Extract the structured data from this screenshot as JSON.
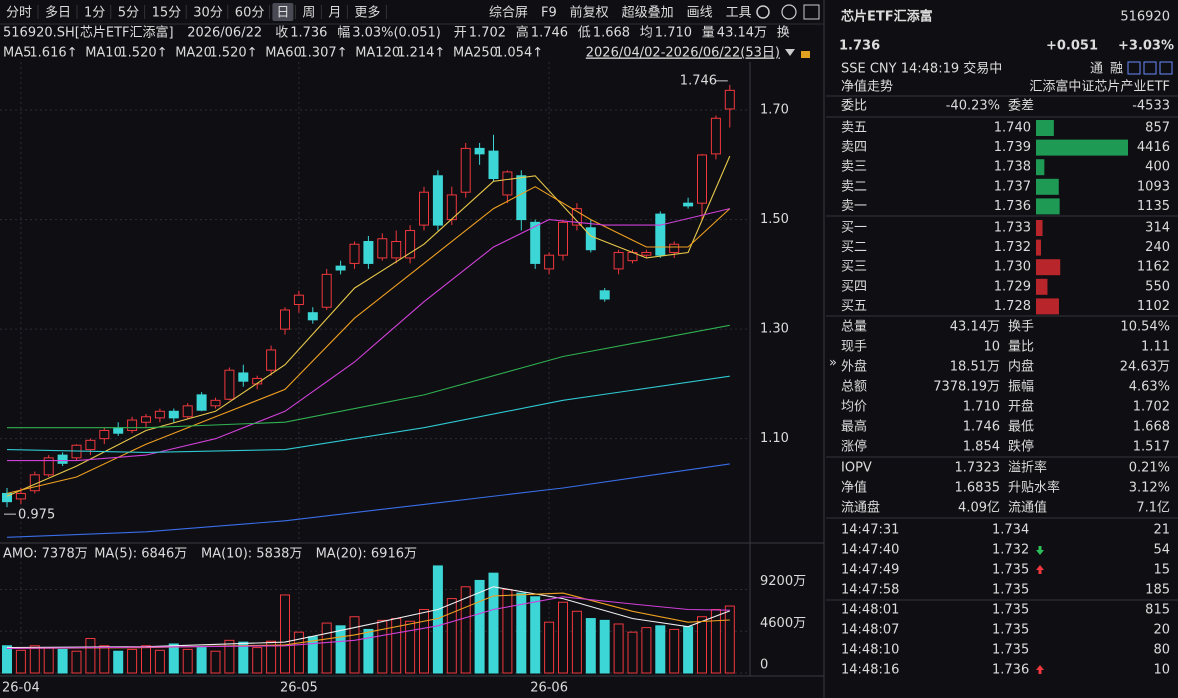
{
  "toolbar": {
    "periods": [
      "分时",
      "多日",
      "1分",
      "5分",
      "15分",
      "30分",
      "60分",
      "日",
      "周",
      "月",
      "更多"
    ],
    "selected": 7,
    "tools": [
      "综合屏",
      "F9",
      "前复权",
      "超级叠加",
      "画线",
      "工具"
    ]
  },
  "quote_bar": {
    "code": "516920.SH[芯片ETF汇添富]",
    "date": "2026/06/22",
    "items": [
      {
        "label": "收",
        "value": "1.736",
        "color": "#f0383e"
      },
      {
        "label": "幅",
        "value": "3.03%(0.051)",
        "color": "#f0383e"
      },
      {
        "label": "开",
        "value": "1.702",
        "color": "#f0383e"
      },
      {
        "label": "高",
        "value": "1.746",
        "color": "#f0383e"
      },
      {
        "label": "低",
        "value": "1.668",
        "color": "#f0383e"
      },
      {
        "label": "均",
        "value": "1.710",
        "color": "#f0383e"
      },
      {
        "label": "量",
        "value": "43.14万",
        "color": "#e0e0e0"
      }
    ],
    "tail": "换"
  },
  "candles": {
    "range": "2026/04/02-2026/06/22(53日)",
    "ylim": [
      0.915,
      1.764
    ],
    "yticks": [
      {
        "value": 1.7,
        "label": "1.70"
      },
      {
        "value": 1.5,
        "label": "1.50"
      },
      {
        "value": 1.3,
        "label": "1.30"
      },
      {
        "value": 1.1,
        "label": "1.10"
      }
    ],
    "up_color": "#f0383e",
    "down_color": "#3dd6d6",
    "max_label": "1.746",
    "min_label": "0.975",
    "open": [
      1.0,
      0.99,
      1.005,
      1.034,
      1.07,
      1.065,
      1.08,
      1.1,
      1.12,
      1.115,
      1.13,
      1.138,
      1.15,
      1.14,
      1.18,
      1.16,
      1.172,
      1.22,
      1.2,
      1.225,
      1.3,
      1.345,
      1.33,
      1.34,
      1.415,
      1.42,
      1.46,
      1.43,
      1.43,
      1.43,
      1.49,
      1.58,
      1.5,
      1.55,
      1.63,
      1.625,
      1.545,
      1.58,
      1.495,
      1.41,
      1.435,
      1.49,
      1.485,
      1.37,
      1.41,
      1.425,
      1.435,
      1.51,
      1.44,
      1.53,
      1.53,
      1.62,
      1.702
    ],
    "high": [
      1.01,
      1.01,
      1.04,
      1.07,
      1.075,
      1.09,
      1.1,
      1.12,
      1.13,
      1.14,
      1.145,
      1.155,
      1.155,
      1.165,
      1.185,
      1.175,
      1.23,
      1.235,
      1.215,
      1.27,
      1.34,
      1.37,
      1.34,
      1.41,
      1.425,
      1.46,
      1.47,
      1.475,
      1.48,
      1.49,
      1.56,
      1.59,
      1.56,
      1.64,
      1.64,
      1.655,
      1.59,
      1.59,
      1.5,
      1.44,
      1.5,
      1.53,
      1.5,
      1.375,
      1.445,
      1.445,
      1.445,
      1.515,
      1.46,
      1.54,
      1.62,
      1.69,
      1.746
    ],
    "low": [
      0.975,
      0.98,
      1.0,
      1.03,
      1.05,
      1.06,
      1.07,
      1.09,
      1.105,
      1.11,
      1.12,
      1.13,
      1.13,
      1.135,
      1.15,
      1.155,
      1.17,
      1.195,
      1.19,
      1.215,
      1.29,
      1.33,
      1.31,
      1.335,
      1.4,
      1.41,
      1.41,
      1.425,
      1.42,
      1.42,
      1.48,
      1.48,
      1.49,
      1.54,
      1.6,
      1.57,
      1.53,
      1.48,
      1.41,
      1.4,
      1.425,
      1.48,
      1.44,
      1.35,
      1.4,
      1.42,
      1.43,
      1.43,
      1.43,
      1.52,
      1.5,
      1.61,
      1.668
    ],
    "close": [
      0.985,
      1.0,
      1.034,
      1.065,
      1.055,
      1.088,
      1.097,
      1.115,
      1.11,
      1.134,
      1.14,
      1.15,
      1.138,
      1.16,
      1.152,
      1.17,
      1.225,
      1.205,
      1.21,
      1.262,
      1.335,
      1.362,
      1.317,
      1.4,
      1.408,
      1.455,
      1.42,
      1.465,
      1.46,
      1.48,
      1.55,
      1.49,
      1.545,
      1.63,
      1.62,
      1.575,
      1.587,
      1.5,
      1.42,
      1.435,
      1.495,
      1.52,
      1.445,
      1.355,
      1.44,
      1.44,
      1.44,
      1.435,
      1.455,
      1.525,
      1.618,
      1.685,
      1.736
    ],
    "dates": [
      null,
      "26-04",
      null,
      null,
      null,
      null,
      null,
      null,
      null,
      null,
      null,
      null,
      null,
      null,
      null,
      null,
      null,
      null,
      null,
      null,
      null,
      "26-05",
      null,
      null,
      null,
      null,
      null,
      null,
      null,
      null,
      null,
      null,
      null,
      null,
      null,
      null,
      null,
      null,
      null,
      "26-06",
      null,
      null,
      null,
      null,
      null,
      null,
      null,
      null,
      null,
      null,
      null,
      null,
      null
    ],
    "ma": [
      {
        "name": "MA5",
        "label": "1.616↑",
        "color": "#e8c84a",
        "x": [
          0,
          5,
          10,
          15,
          20,
          25,
          30,
          35,
          38,
          42,
          46,
          49,
          52
        ],
        "values": [
          0.995,
          1.05,
          1.115,
          1.15,
          1.235,
          1.375,
          1.455,
          1.57,
          1.58,
          1.47,
          1.43,
          1.44,
          1.616
        ]
      },
      {
        "name": "MA10",
        "label": "1.520↑",
        "color": "#f0a020",
        "x": [
          0,
          5,
          10,
          15,
          20,
          25,
          30,
          35,
          38,
          42,
          46,
          49,
          52
        ],
        "values": [
          1.0,
          1.03,
          1.09,
          1.14,
          1.19,
          1.32,
          1.42,
          1.52,
          1.56,
          1.5,
          1.45,
          1.45,
          1.52
        ]
      },
      {
        "name": "MA20",
        "label": "1.520↑",
        "color": "#d040d8",
        "x": [
          0,
          5,
          10,
          15,
          20,
          25,
          30,
          35,
          39,
          43,
          47,
          52
        ],
        "values": [
          1.06,
          1.06,
          1.07,
          1.1,
          1.15,
          1.24,
          1.35,
          1.45,
          1.5,
          1.49,
          1.49,
          1.52
        ]
      },
      {
        "name": "MA60",
        "label": "1.307↑",
        "color": "#30b050",
        "x": [
          0,
          10,
          20,
          30,
          40,
          52
        ],
        "values": [
          1.12,
          1.12,
          1.13,
          1.18,
          1.25,
          1.307
        ]
      },
      {
        "name": "MA120",
        "label": "1.214↑",
        "color": "#30c8d0",
        "x": [
          0,
          10,
          20,
          30,
          40,
          52
        ],
        "values": [
          1.08,
          1.075,
          1.08,
          1.12,
          1.17,
          1.214
        ]
      },
      {
        "name": "MA250",
        "label": "1.054↑",
        "color": "#3a6ee8",
        "x": [
          0,
          10,
          20,
          30,
          40,
          52
        ],
        "values": [
          0.92,
          0.93,
          0.95,
          0.98,
          1.01,
          1.054
        ]
      }
    ]
  },
  "volume": {
    "legend": "AMO: 7378万",
    "ylim": [
      0,
      11900
    ],
    "yticks": [
      {
        "value": 9200,
        "label": "9200万"
      },
      {
        "value": 4600,
        "label": "4600万"
      },
      0
    ],
    "values": [
      3000,
      2500,
      3000,
      2800,
      2600,
      2400,
      3800,
      3000,
      2400,
      2600,
      3000,
      2500,
      3200,
      2600,
      2800,
      2400,
      3600,
      3400,
      2800,
      3500,
      8600,
      4500,
      4000,
      5500,
      5200,
      6200,
      4800,
      5800,
      6000,
      5700,
      7000,
      11800,
      8200,
      9500,
      10200,
      11000,
      9200,
      8800,
      8400,
      5600,
      7800,
      6800,
      6000,
      5800,
      5400,
      4500,
      5000,
      5200,
      4800,
      5100,
      6200,
      7000,
      7378
    ],
    "ma": [
      {
        "legend": "MA(5): 6846万",
        "color": "#f0f0f0",
        "x": [
          0,
          10,
          20,
          25,
          31,
          35,
          40,
          45,
          49,
          52
        ],
        "values": [
          2800,
          2900,
          3400,
          5000,
          7000,
          9500,
          8200,
          6000,
          5100,
          6846
        ]
      },
      {
        "legend": "MA(10): 5838万",
        "color": "#f0a020",
        "x": [
          0,
          10,
          20,
          25,
          31,
          35,
          40,
          45,
          49,
          52
        ],
        "values": [
          2700,
          2800,
          3100,
          4200,
          6000,
          8500,
          8800,
          6800,
          5600,
          5838
        ]
      },
      {
        "legend": "MA(20): 6916万",
        "color": "#d040d8",
        "x": [
          0,
          20,
          25,
          31,
          35,
          40,
          45,
          49,
          52
        ],
        "values": [
          2700,
          3000,
          3600,
          5200,
          7000,
          8400,
          7600,
          7000,
          6916
        ]
      }
    ]
  },
  "quote": {
    "name": "芯片ETF汇添富",
    "code": "516920",
    "price": "1.736",
    "change": "+0.051",
    "pct": "+3.03%",
    "status": "SSE  CNY  14:48:19  交易中",
    "tags": [
      "通",
      "融"
    ],
    "nav_link": "净值走势",
    "fund_name": "汇添富中证芯片产业ETF",
    "weibi": {
      "label": "委比",
      "value": "-40.23%",
      "label2": "委差",
      "value2": "-4533"
    }
  },
  "asks": [
    {
      "label": "卖五",
      "price": "1.740",
      "qty": 857
    },
    {
      "label": "卖四",
      "price": "1.739",
      "qty": 4416
    },
    {
      "label": "卖三",
      "price": "1.738",
      "qty": 400
    },
    {
      "label": "卖二",
      "price": "1.737",
      "qty": 1093
    },
    {
      "label": "卖一",
      "price": "1.736",
      "qty": 1135
    }
  ],
  "bids": [
    {
      "label": "买一",
      "price": "1.733",
      "qty": 314
    },
    {
      "label": "买二",
      "price": "1.732",
      "qty": 240
    },
    {
      "label": "买三",
      "price": "1.730",
      "qty": 1162
    },
    {
      "label": "买四",
      "price": "1.729",
      "qty": 550
    },
    {
      "label": "买五",
      "price": "1.728",
      "qty": 1102
    }
  ],
  "stats": [
    [
      {
        "label": "总量",
        "value": "43.14万",
        "color": "#e0e0e0"
      },
      {
        "label": "换手",
        "value": "10.54%",
        "color": "#e0e0e0"
      }
    ],
    [
      {
        "label": "现手",
        "value": "10",
        "color": "#e0e0e0"
      },
      {
        "label": "量比",
        "value": "1.11",
        "color": "#e0e0e0"
      }
    ],
    [
      {
        "label": "外盘",
        "value": "18.51万",
        "color": "#f0383e"
      },
      {
        "label": "内盘",
        "value": "24.63万",
        "color": "#2cc05a"
      }
    ],
    [
      {
        "label": "总额",
        "value": "7378.19万",
        "color": "#e0e0e0"
      },
      {
        "label": "振幅",
        "value": "4.63%",
        "color": "#e0e0e0"
      }
    ],
    [
      {
        "label": "均价",
        "value": "1.710",
        "color": "#f0383e"
      },
      {
        "label": "开盘",
        "value": "1.702",
        "color": "#f0383e"
      }
    ],
    [
      {
        "label": "最高",
        "value": "1.746",
        "color": "#f0383e"
      },
      {
        "label": "最低",
        "value": "1.668",
        "color": "#2cc05a"
      }
    ],
    [
      {
        "label": "涨停",
        "value": "1.854",
        "color": "#f0383e"
      },
      {
        "label": "跌停",
        "value": "1.517",
        "color": "#2cc05a"
      }
    ],
    [
      {
        "label": "IOPV",
        "value": "1.7323",
        "color": "#e0e0e0"
      },
      {
        "label": "溢折率",
        "value": "0.21%",
        "color": "#f0383e"
      }
    ],
    [
      {
        "label": "净值",
        "value": "1.6835",
        "color": "#f0383e"
      },
      {
        "label": "升贴水率",
        "value": "3.12%",
        "color": "#f0383e"
      }
    ],
    [
      {
        "label": "流通盘",
        "value": "4.09亿",
        "color": "#e0e0e0"
      },
      {
        "label": "流通值",
        "value": "7.1亿",
        "color": "#e0e0e0"
      }
    ]
  ],
  "trades": [
    {
      "time": "14:47:31",
      "price": "1.734",
      "vol": "21",
      "vol_color": "#2cc05a"
    },
    {
      "time": "14:47:40",
      "price": "1.732",
      "vol": "54",
      "vol_color": "#2cc05a",
      "arrow": "down"
    },
    {
      "time": "14:47:49",
      "price": "1.735",
      "vol": "15",
      "vol_color": "#f0383e",
      "arrow": "up"
    },
    {
      "time": "14:47:58",
      "price": "1.735",
      "vol": "185",
      "vol_color": "#f0383e"
    },
    {
      "time": "14:48:01",
      "price": "1.735",
      "vol": "815",
      "vol_color": "#2cc05a"
    },
    {
      "time": "14:48:07",
      "price": "1.735",
      "vol": "20",
      "vol_color": "#f0383e"
    },
    {
      "time": "14:48:10",
      "price": "1.735",
      "vol": "80",
      "vol_color": "#2cc05a"
    },
    {
      "time": "14:48:16",
      "price": "1.736",
      "vol": "10",
      "vol_color": "#f0383e",
      "arrow": "up"
    }
  ]
}
